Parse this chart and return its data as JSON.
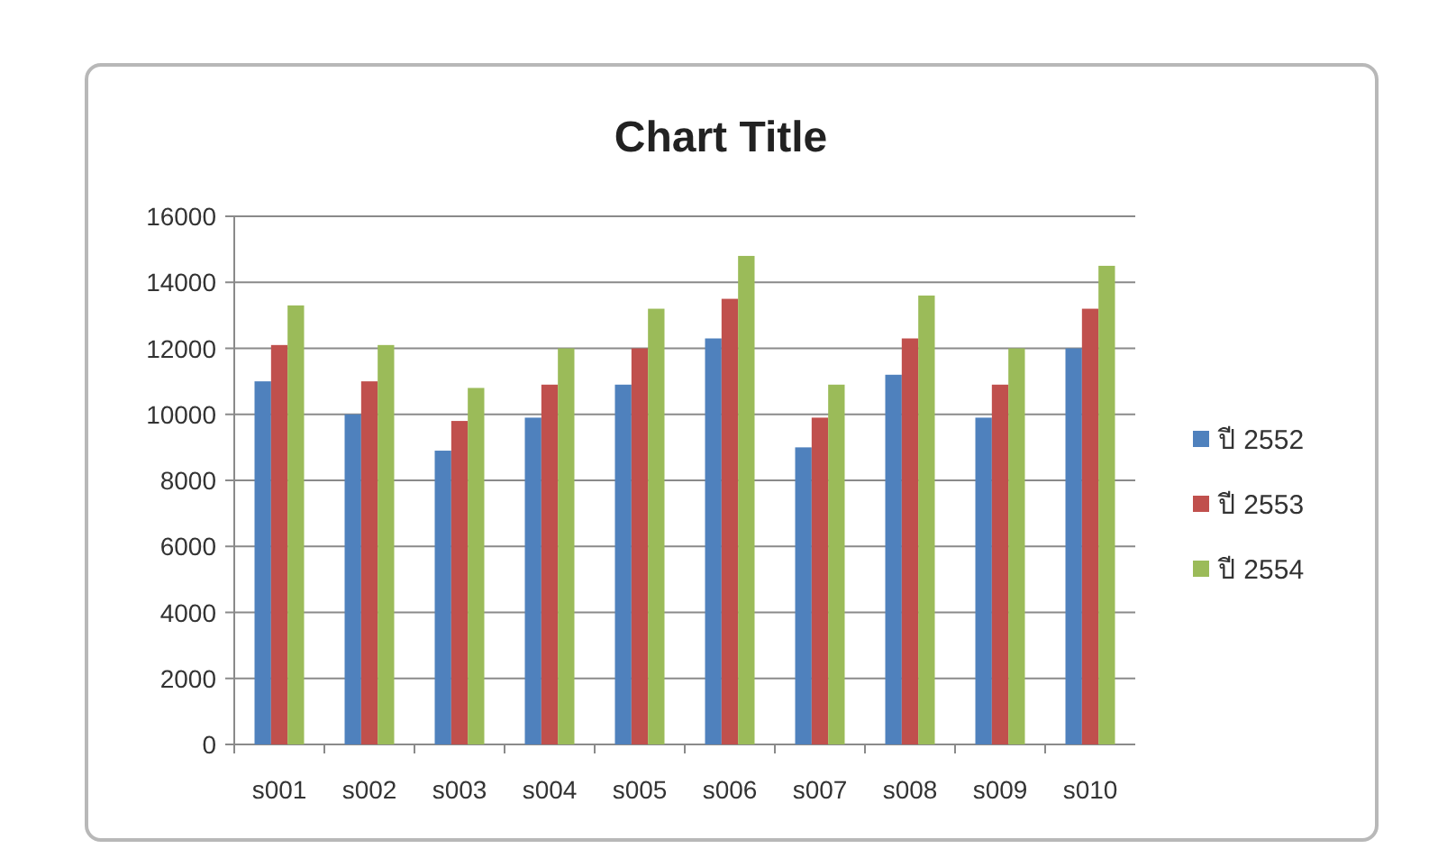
{
  "chart_data": {
    "type": "bar",
    "title": "Chart Title",
    "categories": [
      "s001",
      "s002",
      "s003",
      "s004",
      "s005",
      "s006",
      "s007",
      "s008",
      "s009",
      "s010"
    ],
    "series": [
      {
        "name": "ปี 2552",
        "color": "#4f81bd",
        "values": [
          11000,
          10000,
          8900,
          9900,
          10900,
          12300,
          9000,
          11200,
          9900,
          12000
        ]
      },
      {
        "name": "ปี 2553",
        "color": "#c0504d",
        "values": [
          12100,
          11000,
          9800,
          10900,
          12000,
          13500,
          9900,
          12300,
          10900,
          13200
        ]
      },
      {
        "name": "ปี 2554",
        "color": "#9bbb59",
        "values": [
          13300,
          12100,
          10800,
          12000,
          13200,
          14800,
          10900,
          13600,
          12000,
          14500
        ]
      }
    ],
    "ylim": [
      0,
      16000
    ],
    "yticks": [
      0,
      2000,
      4000,
      6000,
      8000,
      10000,
      12000,
      14000,
      16000
    ],
    "grid": "y",
    "legend": "right"
  }
}
